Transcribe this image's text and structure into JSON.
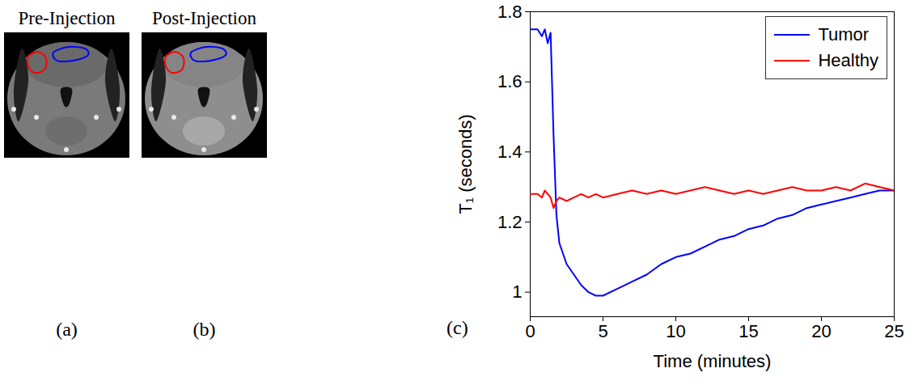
{
  "images": [
    {
      "title": "Pre-Injection",
      "label": "(a)"
    },
    {
      "title": "Post-Injection",
      "label": "(b)"
    }
  ],
  "chart_data": {
    "type": "line",
    "panel_label": "(c)",
    "x_label": "Time (minutes)",
    "y_label": "T₁ (seconds)",
    "x": [
      0,
      0.5,
      0.8,
      1.0,
      1.2,
      1.4,
      1.6,
      1.8,
      2.0,
      2.5,
      3,
      3.5,
      4,
      4.5,
      5,
      6,
      7,
      8,
      9,
      10,
      11,
      12,
      13,
      14,
      15,
      16,
      17,
      18,
      19,
      20,
      21,
      22,
      23,
      24,
      25
    ],
    "series": [
      {
        "name": "Tumor",
        "color": "#0000ff",
        "values": [
          1.75,
          1.75,
          1.73,
          1.75,
          1.71,
          1.74,
          1.45,
          1.22,
          1.14,
          1.08,
          1.05,
          1.02,
          1.0,
          0.99,
          0.99,
          1.01,
          1.03,
          1.05,
          1.08,
          1.1,
          1.11,
          1.13,
          1.15,
          1.16,
          1.18,
          1.19,
          1.21,
          1.22,
          1.24,
          1.25,
          1.26,
          1.27,
          1.28,
          1.29,
          1.29
        ]
      },
      {
        "name": "Healthy",
        "color": "#ff0000",
        "values": [
          1.28,
          1.28,
          1.27,
          1.29,
          1.28,
          1.27,
          1.24,
          1.26,
          1.27,
          1.26,
          1.27,
          1.28,
          1.27,
          1.28,
          1.27,
          1.28,
          1.29,
          1.28,
          1.29,
          1.28,
          1.29,
          1.3,
          1.29,
          1.28,
          1.29,
          1.28,
          1.29,
          1.3,
          1.29,
          1.29,
          1.3,
          1.29,
          1.31,
          1.3,
          1.29
        ]
      }
    ],
    "xlim": [
      0,
      25
    ],
    "xticks": [
      0,
      5,
      10,
      15,
      20,
      25
    ],
    "ylim": [
      0.93,
      1.8
    ],
    "yticks": [
      1,
      1.2,
      1.4,
      1.6,
      1.8
    ],
    "legend": "top-right",
    "grid": false
  }
}
